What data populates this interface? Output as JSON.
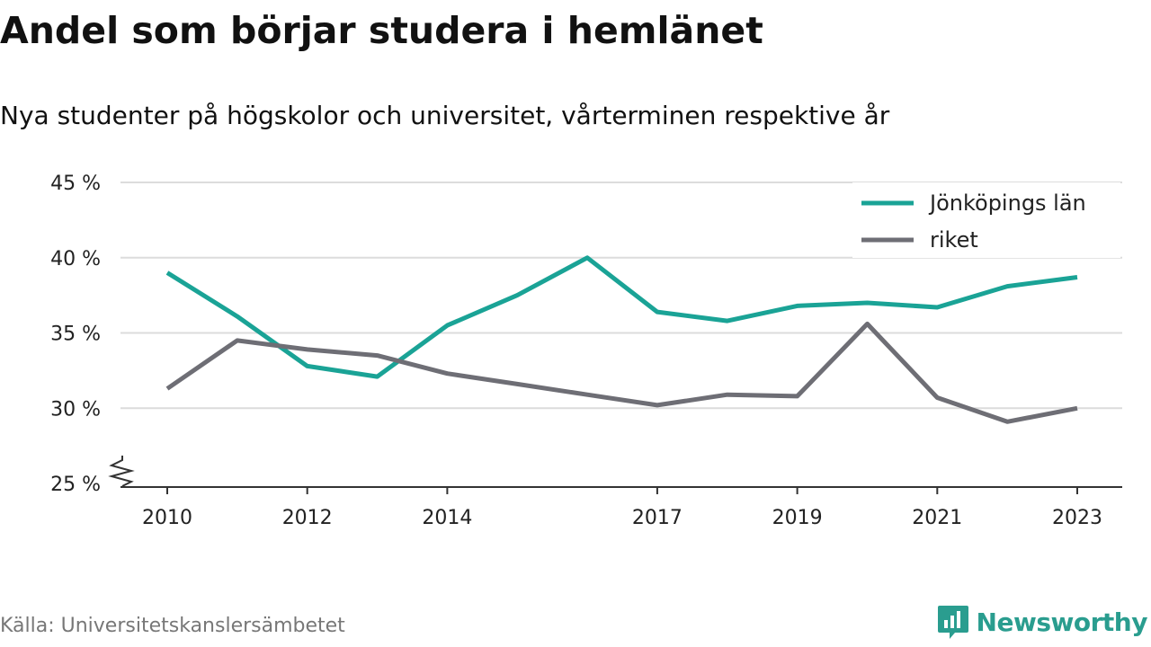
{
  "header": {
    "title": "Andel som börjar studera i hemlänet",
    "subtitle": "Nya studenter på högskolor och universitet, vårterminen respektive år"
  },
  "footer": {
    "source": "Källa: Universitetskanslersämbetet",
    "brand": "Newsworthy"
  },
  "colors": {
    "teal": "#1aa396",
    "gray": "#6e6e75",
    "grid": "#dcdcdc",
    "brand": "#2a9d8f"
  },
  "chart_data": {
    "type": "line",
    "x": [
      2010,
      2011,
      2012,
      2013,
      2014,
      2015,
      2016,
      2017,
      2018,
      2019,
      2020,
      2021,
      2022,
      2023
    ],
    "x_ticks": [
      2010,
      2012,
      2014,
      2017,
      2019,
      2021,
      2023
    ],
    "y_ticks": [
      25,
      30,
      35,
      40,
      45
    ],
    "y_tick_labels": [
      "25 %",
      "30 %",
      "35 %",
      "40 %",
      "45 %"
    ],
    "ylim": [
      25,
      45
    ],
    "xlim": [
      2010,
      2023
    ],
    "axis_break": true,
    "grid": true,
    "legend_position": "top-right",
    "series": [
      {
        "name": "Jönköpings län",
        "color": "#1aa396",
        "values": [
          39.0,
          36.1,
          32.8,
          32.1,
          35.5,
          37.5,
          40.0,
          36.4,
          35.8,
          36.8,
          37.0,
          36.7,
          38.1,
          38.7
        ]
      },
      {
        "name": "riket",
        "color": "#6e6e75",
        "values": [
          31.3,
          34.5,
          33.9,
          33.5,
          32.3,
          31.6,
          30.9,
          30.2,
          30.9,
          30.8,
          35.6,
          30.7,
          29.1,
          30.0
        ]
      }
    ]
  }
}
